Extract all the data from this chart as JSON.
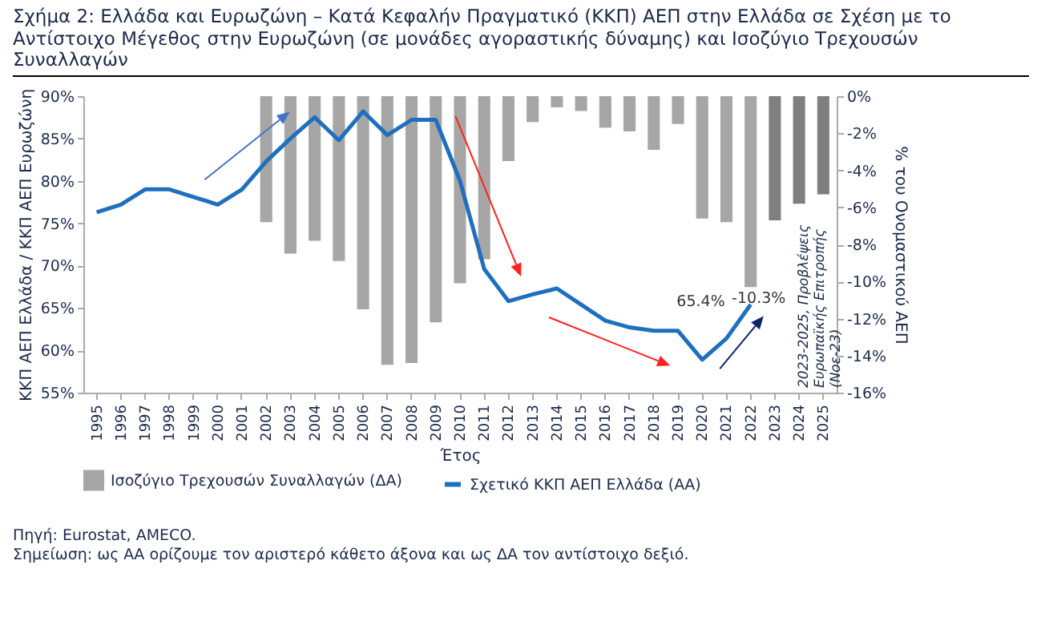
{
  "chart_data": {
    "type": "bar",
    "title": "Σχήμα 2: Ελλάδα και Ευρωζώνη – Κατά Κεφαλήν Πραγματικό (ΚΚΠ) ΑΕΠ στην Ελλάδα σε Σχέση με το Αντίστοιχο Μέγεθος στην Ευρωζώνη (σε μονάδες αγοραστικής δύναμης) και Ισοζύγιο Τρεχουσών Συναλλαγών",
    "xlabel": "Έτος",
    "ylabel": "ΚΚΠ ΑΕΠ Ελλάδα / ΚΚΠ ΑΕΠ Ευρωζώνη",
    "y2label": "% του Ονομαστικού ΑΕΠ",
    "categories": [
      "1995",
      "1996",
      "1997",
      "1998",
      "1999",
      "2000",
      "2001",
      "2002",
      "2003",
      "2004",
      "2005",
      "2006",
      "2007",
      "2008",
      "2009",
      "2010",
      "2011",
      "2012",
      "2013",
      "2014",
      "2015",
      "2016",
      "2017",
      "2018",
      "2019",
      "2020",
      "2021",
      "2022",
      "2023",
      "2024",
      "2025"
    ],
    "series": [
      {
        "name": "Ισοζύγιο Τρεχουσών Συναλλαγών (ΔΑ)",
        "axis": "y2",
        "color": "#a6a6a6",
        "values": [
          null,
          null,
          null,
          null,
          null,
          null,
          null,
          -6.8,
          -8.5,
          -7.8,
          -8.9,
          -11.5,
          -14.5,
          -14.4,
          -12.2,
          -10.1,
          -8.8,
          -3.5,
          -1.4,
          -0.6,
          -0.8,
          -1.7,
          -1.9,
          -2.9,
          -1.5,
          -6.6,
          -6.8,
          -10.3,
          null,
          null,
          null
        ],
        "value_labels": [
          null,
          null,
          null,
          null,
          null,
          null,
          null,
          null,
          null,
          null,
          null,
          null,
          null,
          null,
          null,
          null,
          null,
          null,
          null,
          null,
          null,
          null,
          null,
          null,
          null,
          null,
          null,
          "-10.3%",
          null,
          null,
          null
        ]
      },
      {
        "axis": "y2",
        "color": "#7f7f7f",
        "values": [
          null,
          null,
          null,
          null,
          null,
          null,
          null,
          null,
          null,
          null,
          null,
          null,
          null,
          null,
          null,
          null,
          null,
          null,
          null,
          null,
          null,
          null,
          null,
          null,
          null,
          null,
          null,
          null,
          -6.7,
          -5.8,
          -5.3
        ]
      },
      {
        "name": "Σχετικό ΚΚΠ ΑΕΠ Ελλάδα (ΑΑ)",
        "type": "line",
        "color": "#1f6fbf",
        "values": [
          76.3,
          77.2,
          79.0,
          79.0,
          78.1,
          77.2,
          79.0,
          82.3,
          85.0,
          87.5,
          84.8,
          88.2,
          85.4,
          87.2,
          87.2,
          80.0,
          69.6,
          65.8,
          66.6,
          67.3,
          65.4,
          63.5,
          62.7,
          62.3,
          62.3,
          58.9,
          61.4,
          65.4,
          null,
          null,
          null
        ],
        "value_labels": [
          null,
          null,
          null,
          null,
          null,
          null,
          null,
          null,
          null,
          null,
          null,
          null,
          null,
          null,
          null,
          null,
          null,
          null,
          null,
          null,
          null,
          null,
          null,
          null,
          null,
          null,
          null,
          "65.4%",
          null,
          null,
          null
        ]
      }
    ],
    "ylim": [
      55,
      90
    ],
    "yticks": [
      {
        "value": 55,
        "label": "55%"
      },
      {
        "value": 60,
        "label": "60%"
      },
      {
        "value": 65,
        "label": "65%"
      },
      {
        "value": 70,
        "label": "70%"
      },
      {
        "value": 75,
        "label": "75%"
      },
      {
        "value": 80,
        "label": "80%"
      },
      {
        "value": 85,
        "label": "85%"
      },
      {
        "value": 90,
        "label": "90%"
      }
    ],
    "y2lim": [
      -16,
      0
    ],
    "y2ticks": [
      {
        "value": -16,
        "label": "-16%"
      },
      {
        "value": -14,
        "label": "-14%"
      },
      {
        "value": -12,
        "label": "-12%"
      },
      {
        "value": -10,
        "label": "-10%"
      },
      {
        "value": -8,
        "label": "-8%"
      },
      {
        "value": -6,
        "label": "-6%"
      },
      {
        "value": -4,
        "label": "-4%"
      },
      {
        "value": -2,
        "label": "-2%"
      },
      {
        "value": 0,
        "label": "0%"
      }
    ],
    "grid": false,
    "legend": "bottom",
    "annotations": [
      "2023-2025, Προβλέψεις\nΕυρωπαϊκής Επιτροπής\n(Νοε-23)",
      "Πηγή: Eurostat, AMECO.",
      "Σημείωση: ως ΑΑ ορίζουμε τον αριστερό κάθετο άξονα και ως ΔΑ τον αντίστοιχο δεξιό."
    ]
  }
}
